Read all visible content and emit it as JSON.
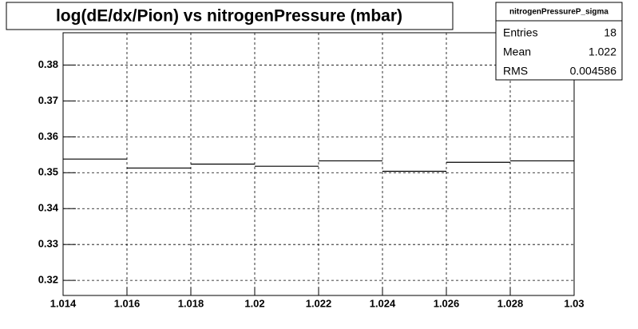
{
  "chart_data": {
    "type": "histogram",
    "title": "log(dE/dx/Pion) vs nitrogenPressure (mbar)",
    "bins": [
      1.014,
      1.016,
      1.018,
      1.02,
      1.022,
      1.024,
      1.026,
      1.028,
      1.03
    ],
    "values": [
      0.3538,
      0.3513,
      0.3524,
      0.3518,
      0.3533,
      0.3504,
      0.3529,
      0.3533
    ],
    "color": "#000000",
    "xlim": [
      1.014,
      1.03
    ],
    "xticks": [
      1.014,
      1.016,
      1.018,
      1.02,
      1.022,
      1.024,
      1.026,
      1.028,
      1.03
    ],
    "ylim": [
      0.3158,
      0.389
    ],
    "yticks": [
      0.32,
      0.33,
      0.34,
      0.35,
      0.36,
      0.37,
      0.38
    ],
    "grid": true,
    "stats": {
      "title": "nitrogenPressureP_sigma",
      "rows": [
        {
          "label": "Entries",
          "value": 18
        },
        {
          "label": "Mean",
          "value": 1.022
        },
        {
          "label": "RMS",
          "value": 0.004586
        }
      ]
    }
  }
}
